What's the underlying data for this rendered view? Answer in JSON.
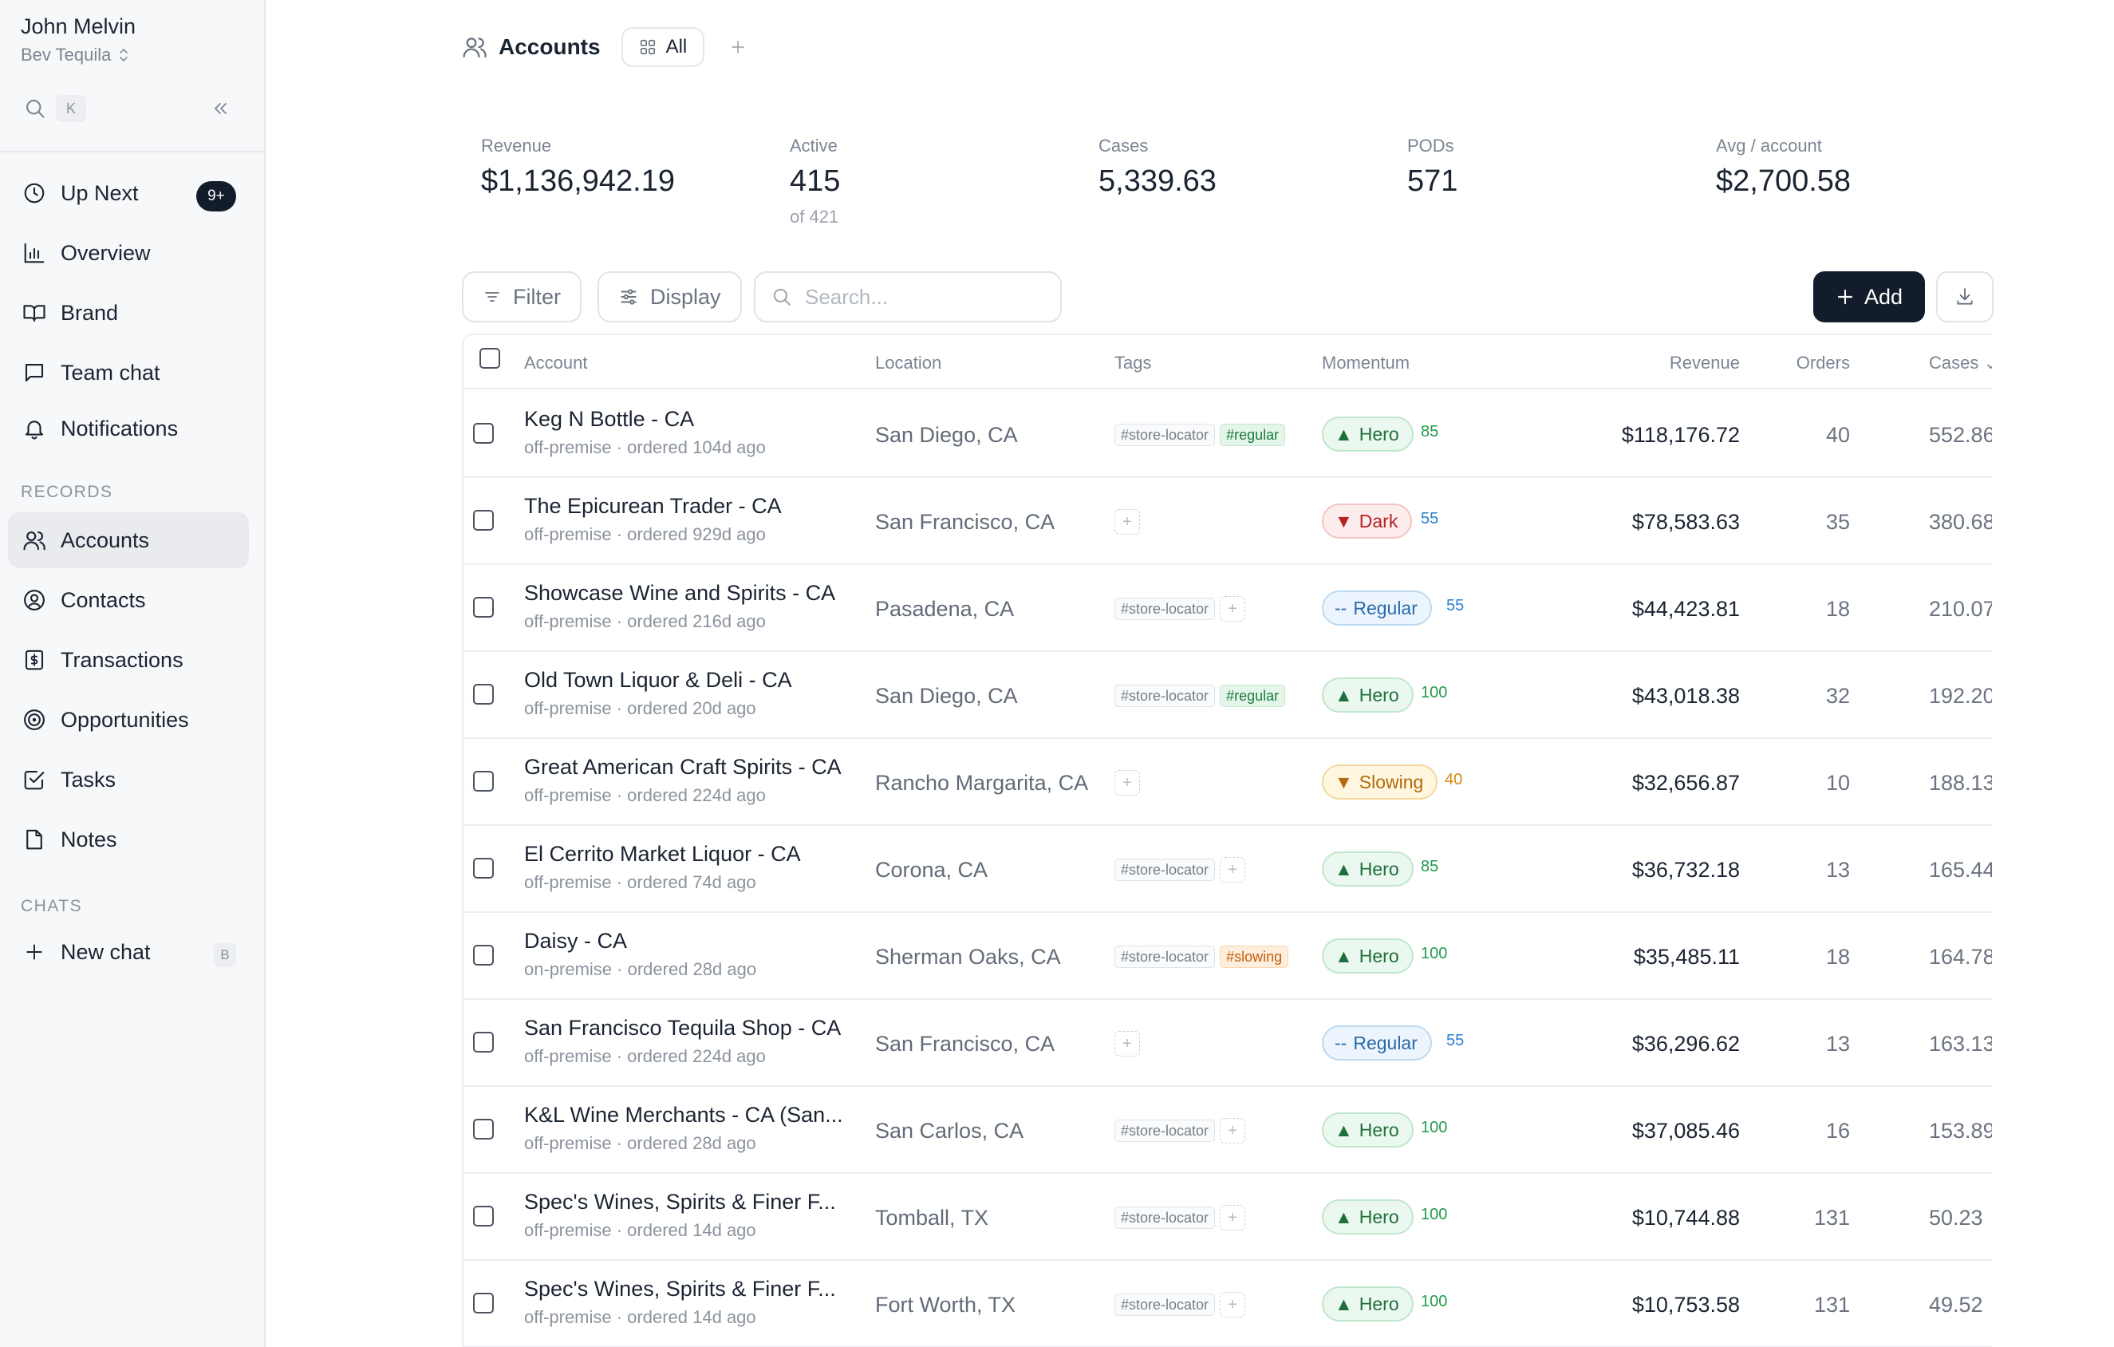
{
  "sidebar": {
    "user_name": "John Melvin",
    "org_name": "Bev Tequila",
    "search_shortcut": "K",
    "nav": [
      {
        "label": "Up Next",
        "icon": "clock-icon",
        "badge": "9+"
      },
      {
        "label": "Overview",
        "icon": "bar-chart-icon"
      },
      {
        "label": "Brand",
        "icon": "book-icon"
      },
      {
        "label": "Team chat",
        "icon": "chat-bubble-icon"
      },
      {
        "label": "Notifications",
        "icon": "bell-icon"
      }
    ],
    "records_label": "RECORDS",
    "records": [
      {
        "label": "Accounts",
        "icon": "users-icon",
        "active": true
      },
      {
        "label": "Contacts",
        "icon": "user-circle-icon"
      },
      {
        "label": "Transactions",
        "icon": "dollar-receipt-icon"
      },
      {
        "label": "Opportunities",
        "icon": "target-icon"
      },
      {
        "label": "Tasks",
        "icon": "checkbox-icon"
      },
      {
        "label": "Notes",
        "icon": "note-icon"
      }
    ],
    "chats_label": "CHATS",
    "new_chat": {
      "label": "New chat",
      "icon": "plus-icon",
      "shortcut": "B"
    }
  },
  "header": {
    "title": "Accounts",
    "title_icon": "users-icon",
    "view_tab": "All",
    "view_tab_icon": "grid-icon"
  },
  "stats": [
    {
      "label": "Revenue",
      "value": "$1,136,942.19",
      "sub": ""
    },
    {
      "label": "Active",
      "value": "415",
      "sub": "of 421"
    },
    {
      "label": "Cases",
      "value": "5,339.63",
      "sub": ""
    },
    {
      "label": "PODs",
      "value": "571",
      "sub": ""
    },
    {
      "label": "Avg / account",
      "value": "$2,700.58",
      "sub": ""
    }
  ],
  "toolbar": {
    "filter_label": "Filter",
    "display_label": "Display",
    "search_placeholder": "Search...",
    "add_label": "Add"
  },
  "table": {
    "columns": {
      "account": "Account",
      "location": "Location",
      "tags": "Tags",
      "momentum": "Momentum",
      "revenue": "Revenue",
      "orders": "Orders",
      "cases": "Cases"
    },
    "rows": [
      {
        "name": "Keg N Bottle - CA",
        "sub": "off-premise · ordered 104d ago",
        "location": "San Diego, CA",
        "tags": [
          "#store-locator",
          "#regular"
        ],
        "momentum": "Hero",
        "momentum_icon": "▲",
        "score": "85",
        "revenue": "$118,176.72",
        "orders": "40",
        "cases": "552.86"
      },
      {
        "name": "The Epicurean Trader - CA",
        "sub": "off-premise · ordered 929d ago",
        "location": "San Francisco, CA",
        "tags": [],
        "momentum": "Dark",
        "momentum_icon": "▼",
        "score": "55",
        "revenue": "$78,583.63",
        "orders": "35",
        "cases": "380.68"
      },
      {
        "name": "Showcase Wine and Spirits - CA",
        "sub": "off-premise · ordered 216d ago",
        "location": "Pasadena, CA",
        "tags": [
          "#store-locator"
        ],
        "momentum": "Regular",
        "momentum_icon": "--",
        "score": "55",
        "revenue": "$44,423.81",
        "orders": "18",
        "cases": "210.07"
      },
      {
        "name": "Old Town Liquor & Deli - CA",
        "sub": "off-premise · ordered 20d ago",
        "location": "San Diego, CA",
        "tags": [
          "#store-locator",
          "#regular"
        ],
        "momentum": "Hero",
        "momentum_icon": "▲",
        "score": "100",
        "revenue": "$43,018.38",
        "orders": "32",
        "cases": "192.20"
      },
      {
        "name": "Great American Craft Spirits - CA",
        "sub": "off-premise · ordered 224d ago",
        "location": "Rancho Margarita, CA",
        "tags": [],
        "momentum": "Slowing",
        "momentum_icon": "▼",
        "score": "40",
        "revenue": "$32,656.87",
        "orders": "10",
        "cases": "188.13"
      },
      {
        "name": "El Cerrito Market Liquor - CA",
        "sub": "off-premise · ordered 74d ago",
        "location": "Corona, CA",
        "tags": [
          "#store-locator"
        ],
        "momentum": "Hero",
        "momentum_icon": "▲",
        "score": "85",
        "revenue": "$36,732.18",
        "orders": "13",
        "cases": "165.44"
      },
      {
        "name": "Daisy - CA",
        "sub": "on-premise · ordered 28d ago",
        "location": "Sherman Oaks, CA",
        "tags": [
          "#store-locator",
          "#slowing"
        ],
        "momentum": "Hero",
        "momentum_icon": "▲",
        "score": "100",
        "revenue": "$35,485.11",
        "orders": "18",
        "cases": "164.78"
      },
      {
        "name": "San Francisco Tequila Shop - CA",
        "sub": "off-premise · ordered 224d ago",
        "location": "San Francisco, CA",
        "tags": [],
        "momentum": "Regular",
        "momentum_icon": "--",
        "score": "55",
        "revenue": "$36,296.62",
        "orders": "13",
        "cases": "163.13"
      },
      {
        "name": "K&L Wine Merchants - CA (San...",
        "sub": "off-premise · ordered 28d ago",
        "location": "San Carlos, CA",
        "tags": [
          "#store-locator"
        ],
        "momentum": "Hero",
        "momentum_icon": "▲",
        "score": "100",
        "revenue": "$37,085.46",
        "orders": "16",
        "cases": "153.89"
      },
      {
        "name": "Spec's Wines, Spirits & Finer F...",
        "sub": "off-premise · ordered 14d ago",
        "location": "Tomball, TX",
        "tags": [
          "#store-locator"
        ],
        "momentum": "Hero",
        "momentum_icon": "▲",
        "score": "100",
        "revenue": "$10,744.88",
        "orders": "131",
        "cases": "50.23"
      },
      {
        "name": "Spec's Wines, Spirits & Finer F...",
        "sub": "off-premise · ordered 14d ago",
        "location": "Fort Worth, TX",
        "tags": [
          "#store-locator"
        ],
        "momentum": "Hero",
        "momentum_icon": "▲",
        "score": "100",
        "revenue": "$10,753.58",
        "orders": "131",
        "cases": "49.52"
      }
    ]
  },
  "colors": {
    "accent_dark": "#121c2b",
    "hero_green": "#239a4d",
    "dark_red": "#b42222",
    "regular_blue": "#2b7fd0",
    "slowing_orange": "#d88a0d"
  }
}
